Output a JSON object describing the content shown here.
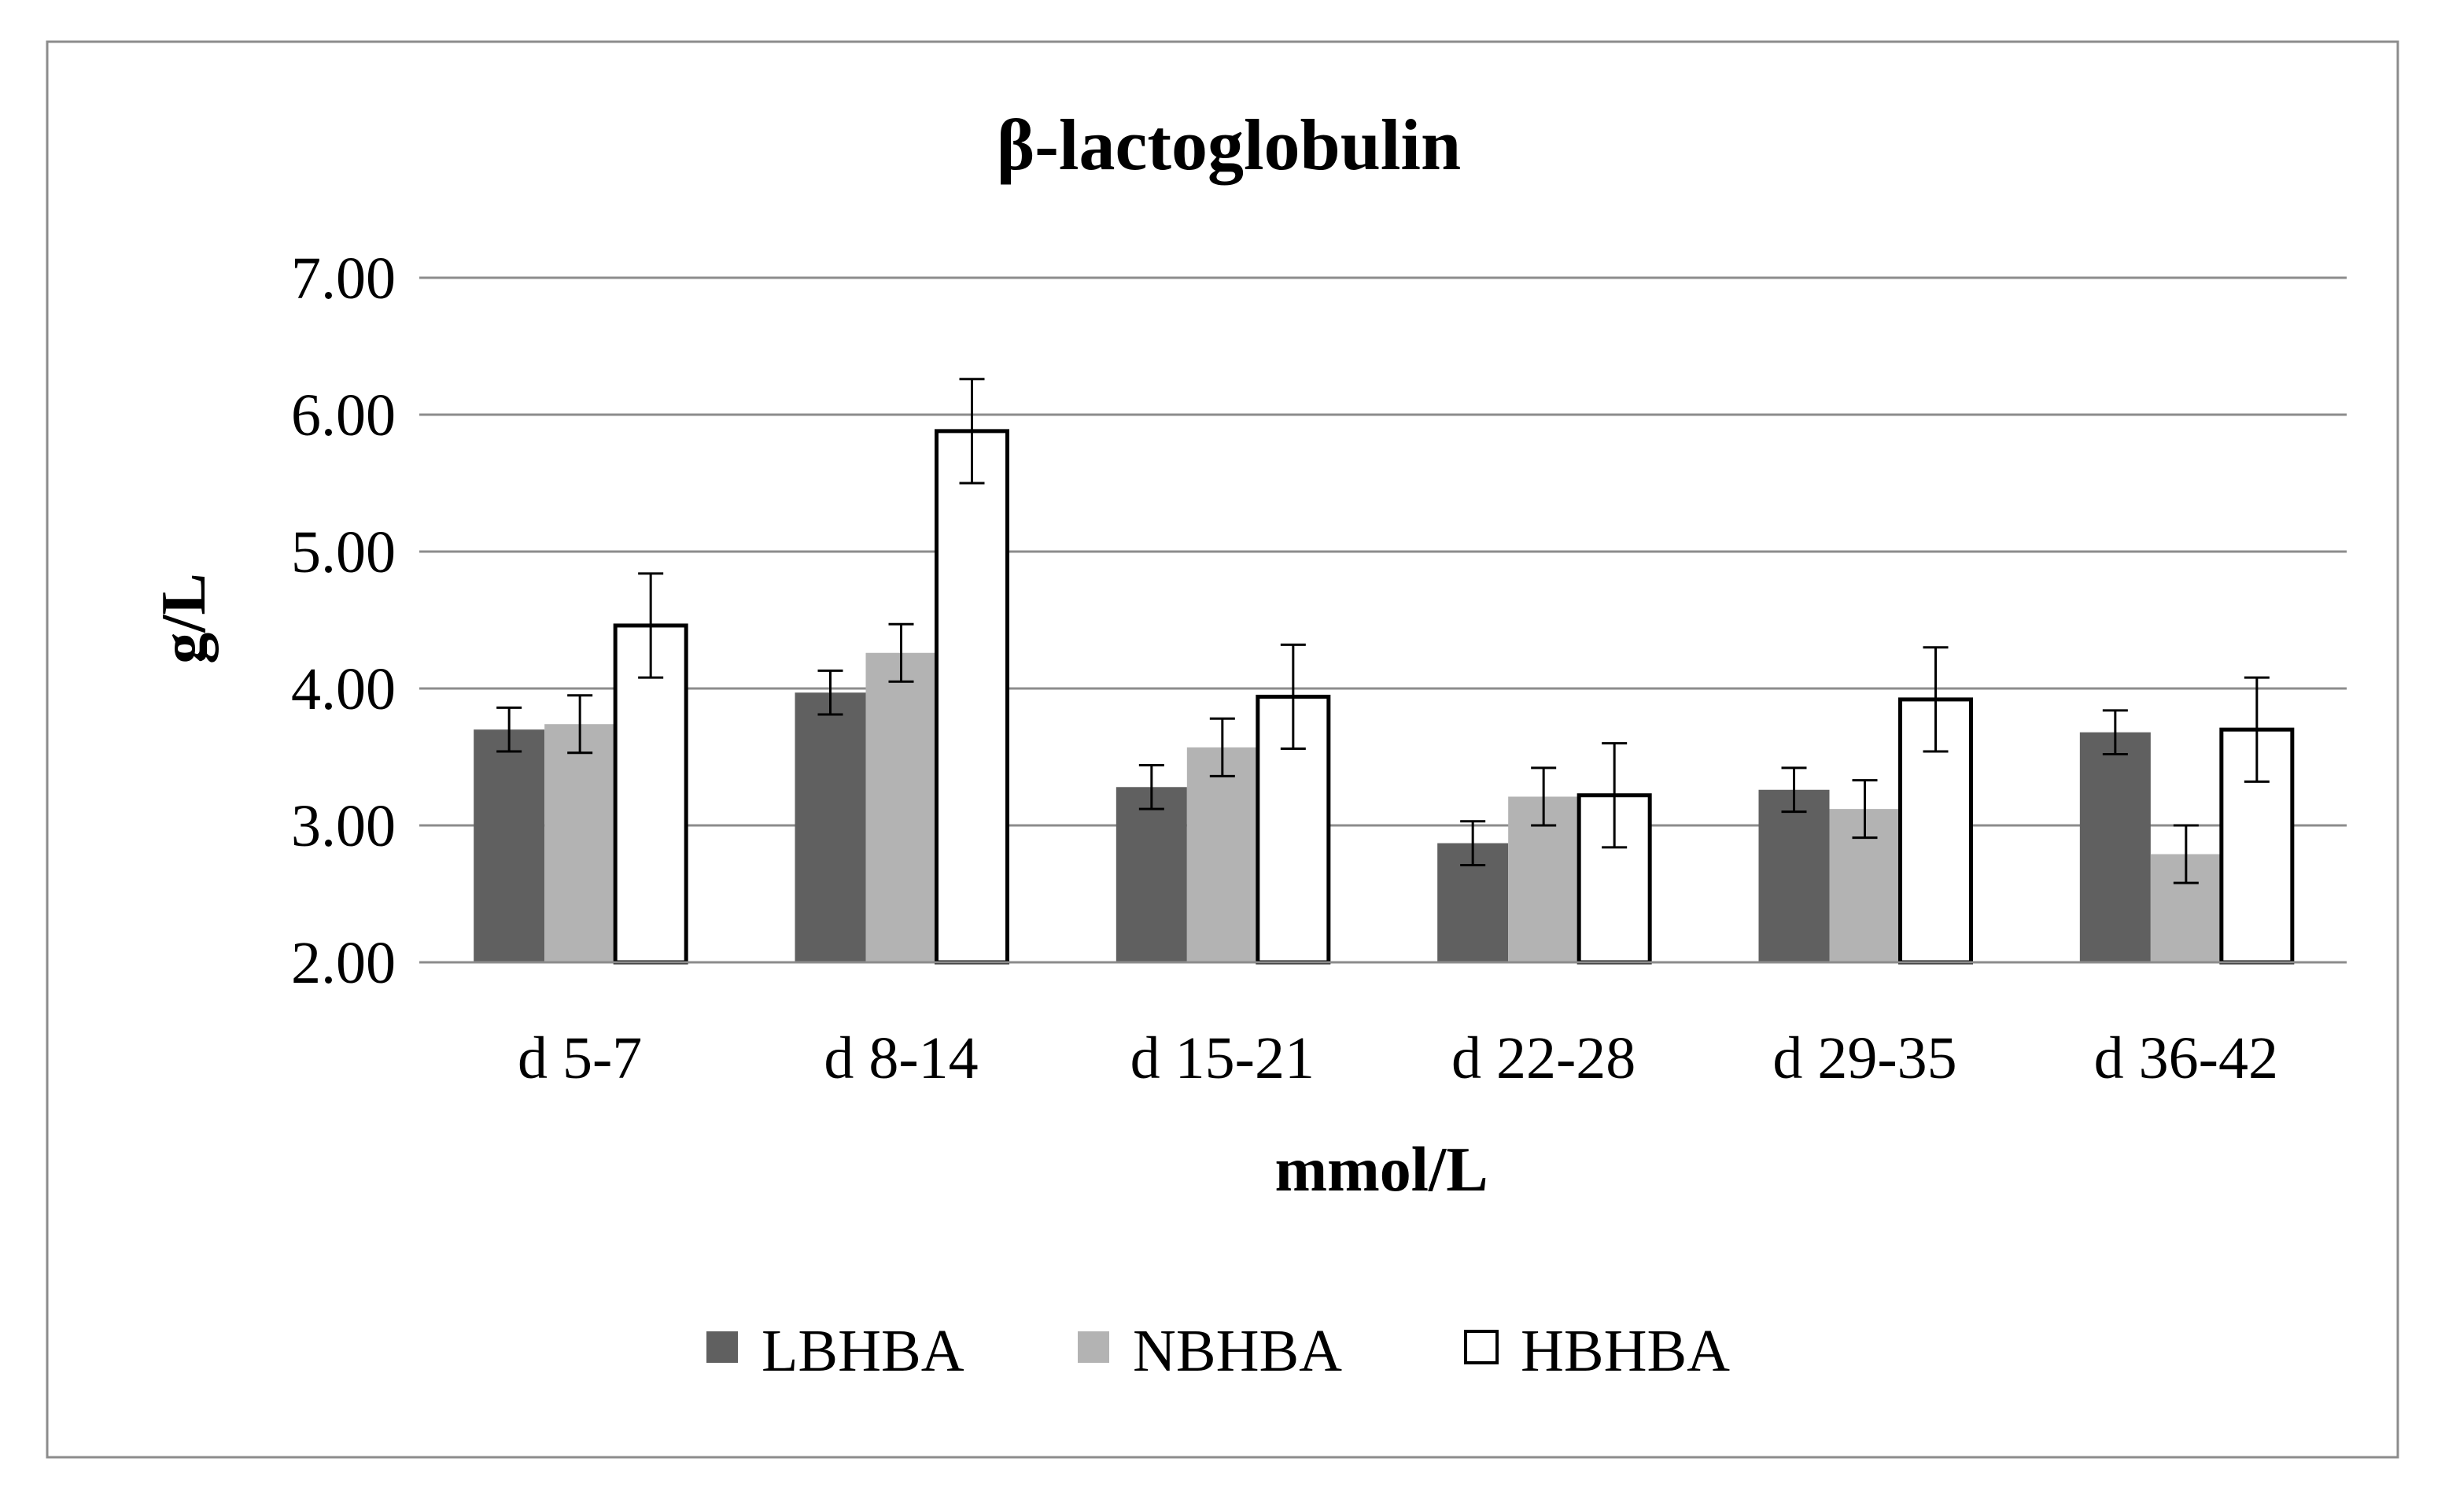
{
  "chart_data": {
    "type": "bar",
    "title": "β-lactoglobulin",
    "xlabel": "mmol/L",
    "ylabel": "g/L",
    "ylim": [
      2.0,
      7.0
    ],
    "yticks": [
      "2.00",
      "3.00",
      "4.00",
      "5.00",
      "6.00",
      "7.00"
    ],
    "categories": [
      "d 5-7",
      "d 8-14",
      "d 15-21",
      "d 22-28",
      "d 29-35",
      "d 36-42"
    ],
    "series": [
      {
        "name": "LBHBA",
        "color": "#606060",
        "values": [
          3.7,
          3.97,
          3.28,
          2.87,
          3.26,
          3.68
        ],
        "errors": [
          0.16,
          0.16,
          0.16,
          0.16,
          0.16,
          0.16
        ]
      },
      {
        "name": "NBHBA",
        "color": "#b3b3b3",
        "values": [
          3.74,
          4.26,
          3.57,
          3.21,
          3.12,
          2.79
        ],
        "errors": [
          0.21,
          0.21,
          0.21,
          0.21,
          0.21,
          0.21
        ]
      },
      {
        "name": "HBHBA",
        "color": "#ffffff",
        "values": [
          4.46,
          5.88,
          3.94,
          3.22,
          3.92,
          3.7
        ],
        "errors": [
          0.38,
          0.38,
          0.38,
          0.38,
          0.38,
          0.38
        ]
      }
    ],
    "grid": true,
    "legend": "bottom"
  }
}
